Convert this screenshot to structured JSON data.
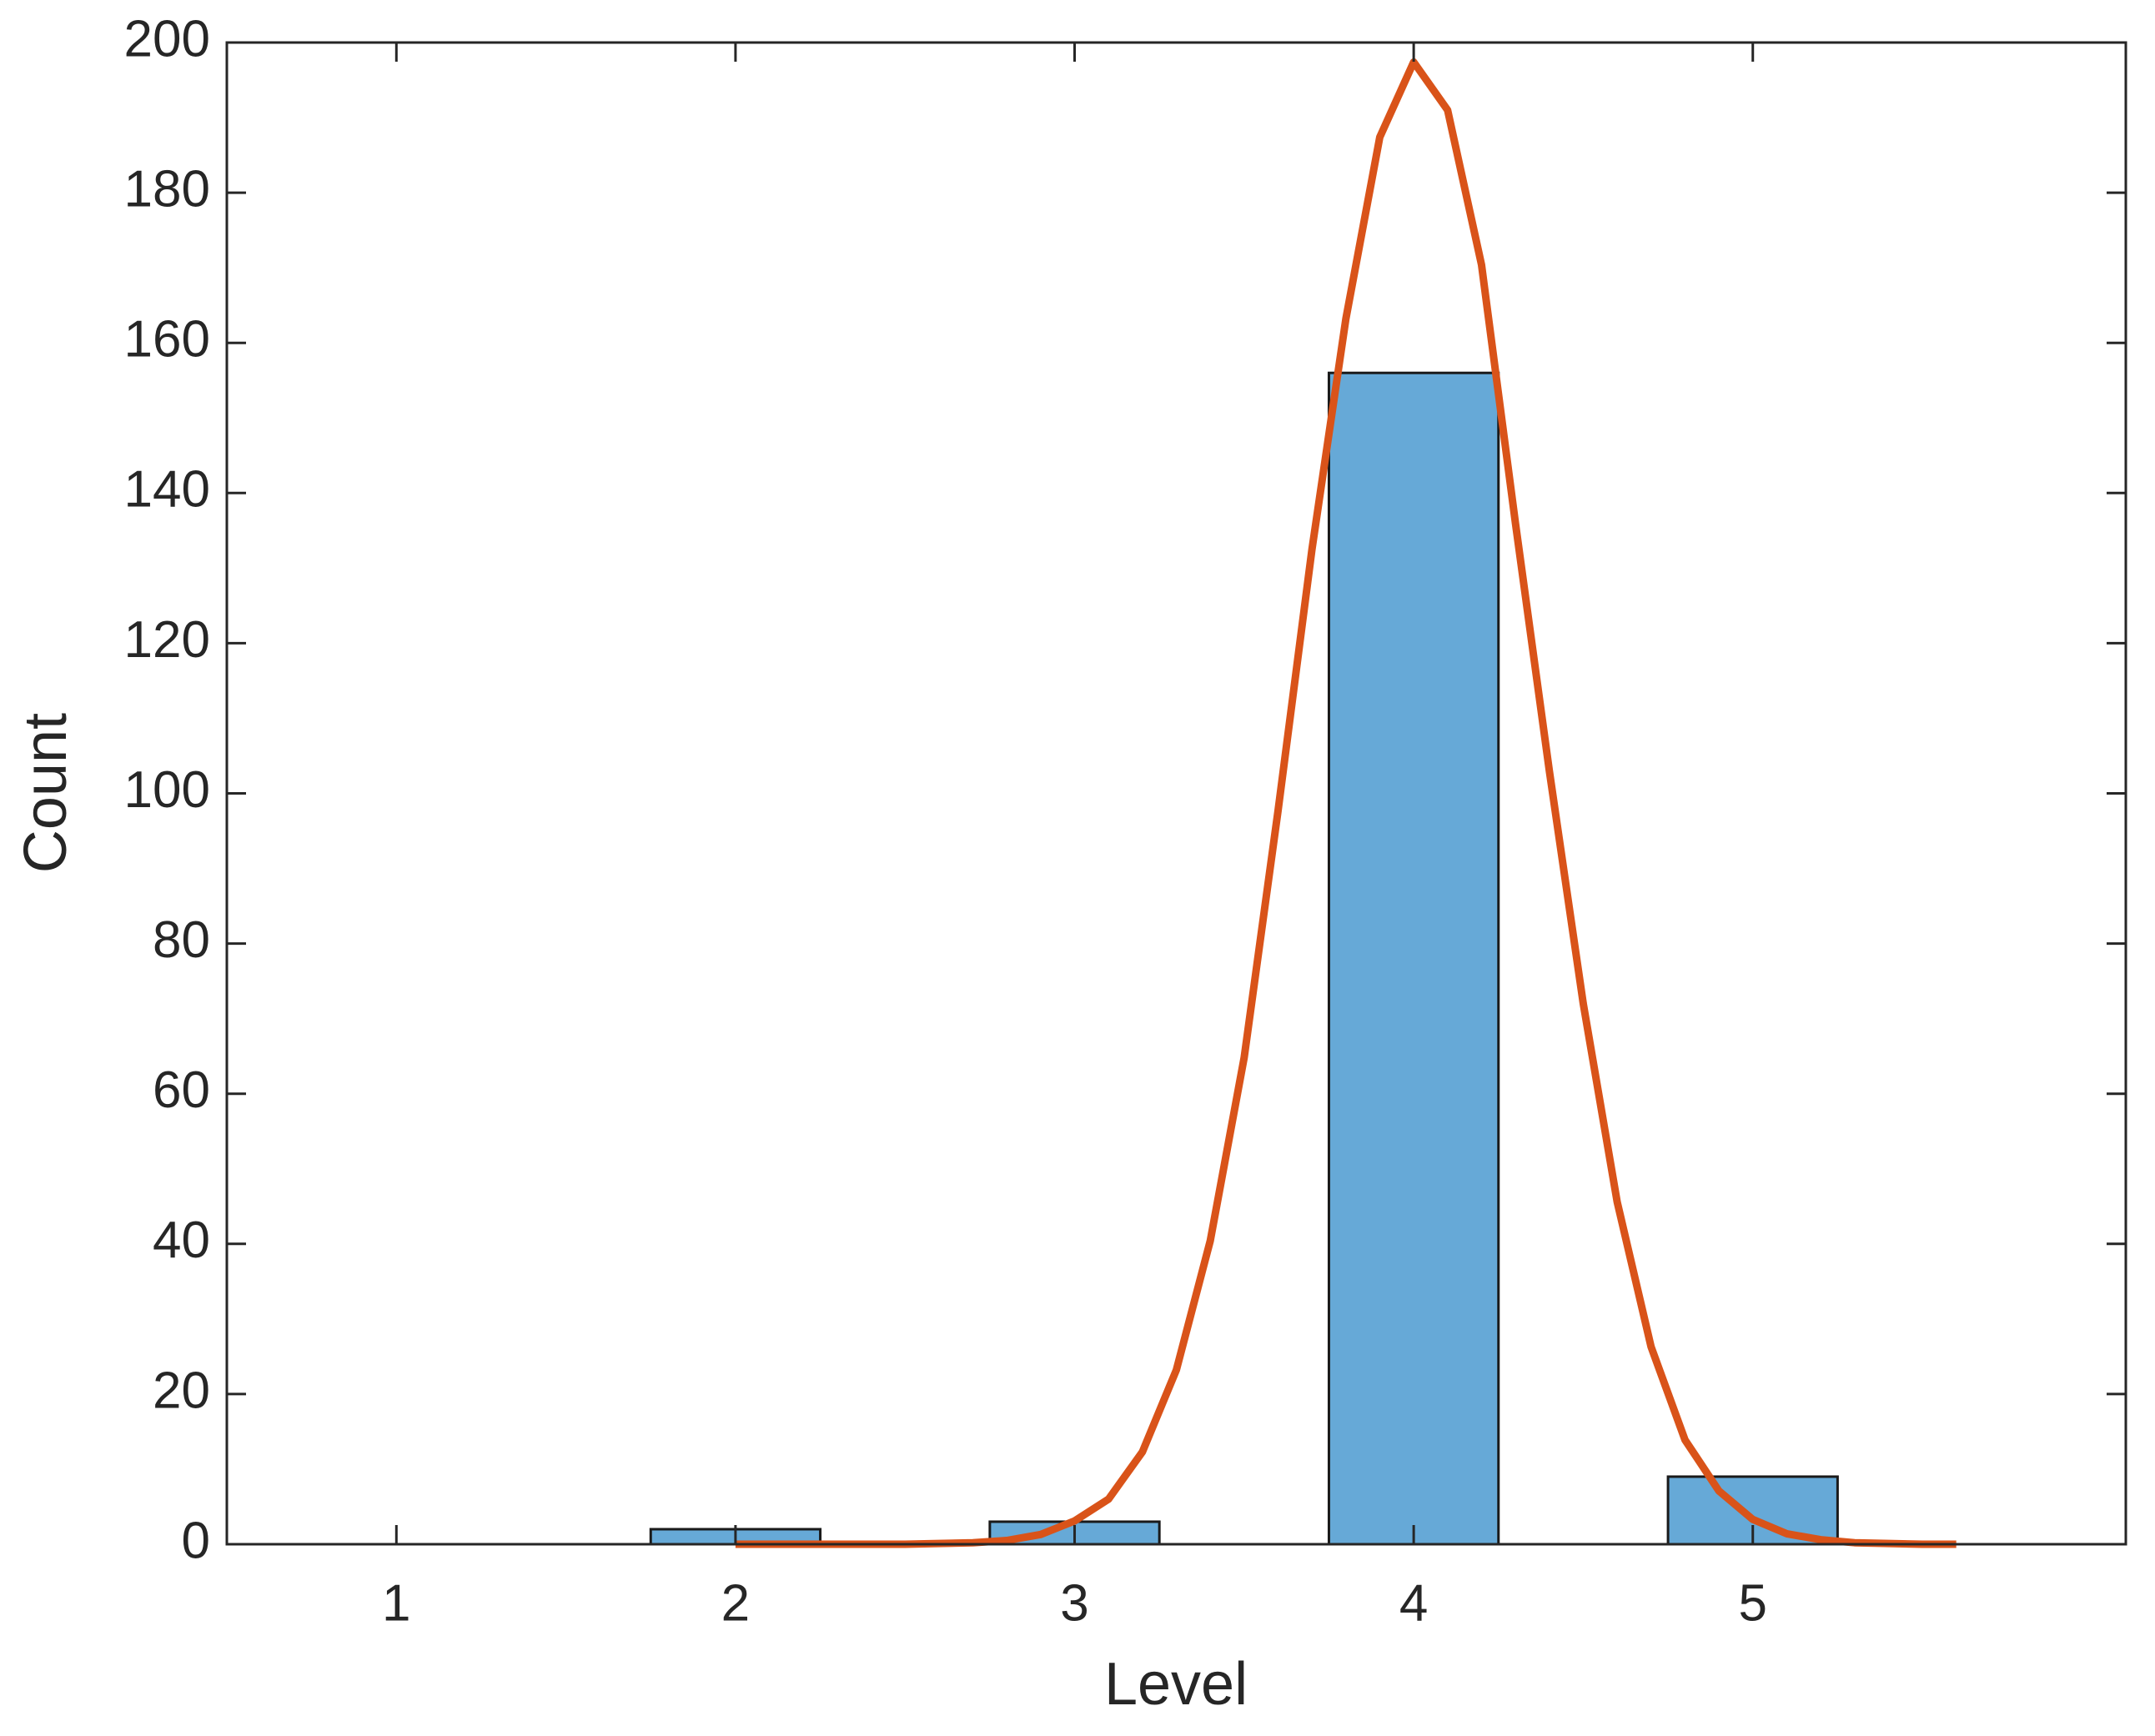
{
  "chart_data": {
    "type": "bar",
    "xlabel": "Level",
    "ylabel": "Count",
    "xlim": [
      0.5,
      6.1
    ],
    "ylim": [
      0,
      200
    ],
    "xticks": [
      1,
      2,
      3,
      4,
      5
    ],
    "yticks": [
      0,
      20,
      40,
      60,
      80,
      100,
      120,
      140,
      160,
      180,
      200
    ],
    "series": [
      {
        "type": "bar",
        "color": "#66a9d7",
        "x": [
          1,
          2,
          3,
          4,
          5
        ],
        "values": [
          0,
          2,
          3,
          156,
          9
        ]
      },
      {
        "type": "line",
        "color": "#d95319",
        "x": [
          2.0,
          2.1,
          2.2,
          2.3,
          2.4,
          2.5,
          2.6,
          2.7,
          2.8,
          2.9,
          3.0,
          3.1,
          3.2,
          3.3,
          3.4,
          3.5,
          3.6,
          3.7,
          3.8,
          3.9,
          4.0,
          4.1,
          4.2,
          4.3,
          4.4,
          4.5,
          4.6,
          4.7,
          4.8,
          4.9,
          5.0,
          5.1,
          5.2,
          5.3,
          5.4,
          5.5,
          5.6
        ],
        "values": [
          0,
          0,
          0,
          0,
          0,
          0,
          0.1,
          0.2,
          0.5,
          1.3,
          3.1,
          6.0,
          12.3,
          23.2,
          40.4,
          64.8,
          97.7,
          132.5,
          163.2,
          187.4,
          197.4,
          191,
          170.4,
          136,
          103,
          72,
          45.6,
          26.3,
          13.9,
          7.1,
          3.3,
          1.4,
          0.6,
          0.2,
          0.1,
          0,
          0
        ]
      }
    ]
  }
}
